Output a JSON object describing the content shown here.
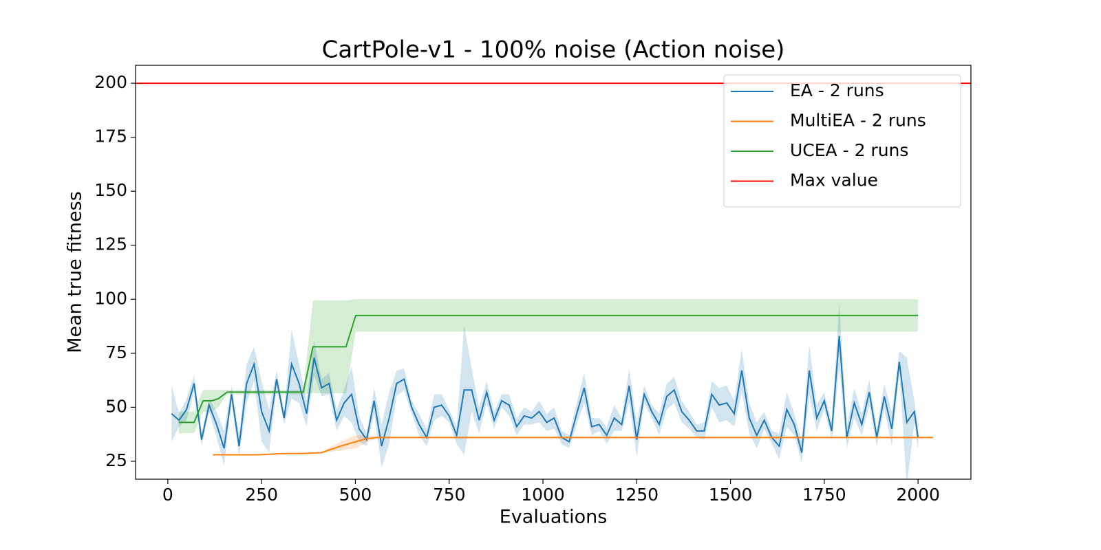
{
  "chart_data": {
    "type": "line",
    "title": "CartPole-v1 - 100% noise (Action noise)",
    "xlabel": "Evaluations",
    "ylabel": "Mean true fitness",
    "xlim": [
      -86,
      2141
    ],
    "ylim": [
      16.7,
      208.3
    ],
    "xticks": [
      0,
      250,
      500,
      750,
      1000,
      1250,
      1500,
      1750,
      2000
    ],
    "yticks": [
      25,
      50,
      75,
      100,
      125,
      150,
      175,
      200
    ],
    "grid": false,
    "legend": "upper right",
    "series": [
      {
        "name": "EA - 2 runs",
        "color": "#1f77b4",
        "x": [
          10,
          30,
          50,
          70,
          90,
          110,
          130,
          150,
          170,
          190,
          210,
          230,
          250,
          270,
          290,
          310,
          330,
          350,
          370,
          390,
          410,
          430,
          450,
          470,
          490,
          510,
          530,
          550,
          570,
          590,
          610,
          630,
          650,
          670,
          690,
          710,
          730,
          750,
          770,
          790,
          810,
          830,
          850,
          870,
          890,
          910,
          930,
          950,
          970,
          990,
          1010,
          1030,
          1050,
          1070,
          1090,
          1110,
          1130,
          1150,
          1170,
          1190,
          1210,
          1230,
          1250,
          1270,
          1290,
          1310,
          1330,
          1350,
          1370,
          1390,
          1410,
          1430,
          1450,
          1470,
          1490,
          1510,
          1530,
          1550,
          1570,
          1590,
          1610,
          1630,
          1650,
          1670,
          1690,
          1710,
          1730,
          1750,
          1770,
          1790,
          1810,
          1830,
          1850,
          1870,
          1890,
          1910,
          1930,
          1950,
          1970,
          1990,
          2000
        ],
        "values": [
          47,
          44,
          49,
          61,
          35,
          51,
          42,
          31,
          56,
          32,
          61,
          70,
          48,
          39,
          63,
          45,
          70,
          61,
          47,
          73,
          59,
          61,
          44,
          52,
          56,
          40,
          35,
          53,
          32,
          45,
          61,
          63,
          50,
          42,
          36,
          50,
          51,
          46,
          37,
          58,
          58,
          44,
          57,
          44,
          53,
          51,
          41,
          46,
          45,
          48,
          43,
          45,
          36,
          34,
          47,
          59,
          41,
          42,
          37,
          45,
          42,
          60,
          35,
          56,
          48,
          42,
          55,
          58,
          48,
          44,
          39,
          39,
          56,
          51,
          52,
          47,
          67,
          45,
          37,
          44,
          36,
          32,
          49,
          42,
          29,
          67,
          45,
          53,
          39,
          83,
          36,
          52,
          42,
          57,
          36,
          55,
          40,
          71,
          43,
          48,
          36
        ],
        "error": [
          13,
          3,
          5,
          4,
          3,
          3,
          6,
          8,
          4,
          5,
          9,
          8,
          14,
          10,
          4,
          3,
          16,
          9,
          6,
          8,
          4,
          5,
          5,
          6,
          13,
          6,
          3,
          6,
          10,
          12,
          6,
          5,
          3,
          5,
          4,
          6,
          5,
          3,
          4,
          30,
          10,
          6,
          5,
          4,
          3,
          5,
          4,
          4,
          3,
          5,
          4,
          5,
          3,
          3,
          5,
          7,
          4,
          3,
          4,
          6,
          3,
          8,
          8,
          4,
          3,
          5,
          6,
          6,
          5,
          4,
          3,
          4,
          6,
          8,
          8,
          6,
          10,
          7,
          6,
          4,
          3,
          6,
          8,
          5,
          5,
          12,
          6,
          4,
          4,
          15,
          5,
          7,
          5,
          6,
          4,
          6,
          8,
          5,
          30,
          5,
          6
        ]
      },
      {
        "name": "MultiEA - 2 runs",
        "color": "#ff7f0e",
        "x": [
          120,
          240,
          300,
          360,
          410,
          460,
          500,
          530,
          560,
          600,
          1000,
          1500,
          2040
        ],
        "values": [
          28,
          28,
          28.5,
          28.6,
          29,
          32,
          34,
          35.5,
          36,
          36,
          36,
          36,
          36
        ],
        "error": [
          0,
          0,
          0,
          0,
          0.3,
          2,
          3,
          1.5,
          0.5,
          0.3,
          0.3,
          0.3,
          0.3
        ]
      },
      {
        "name": "UCEA - 2 runs",
        "color": "#2ca02c",
        "x": [
          29,
          70,
          94,
          117,
          135,
          158,
          361,
          387,
          475,
          501,
          2000
        ],
        "values": [
          43,
          43,
          53,
          53,
          54,
          57,
          57,
          78,
          78,
          92.5,
          92.5
        ],
        "error": [
          5,
          5,
          5,
          5,
          4,
          1,
          1,
          21.5,
          21.5,
          7.5,
          7.5
        ]
      },
      {
        "name": "Max value",
        "color": "#ff0000",
        "hline": 200
      }
    ]
  }
}
